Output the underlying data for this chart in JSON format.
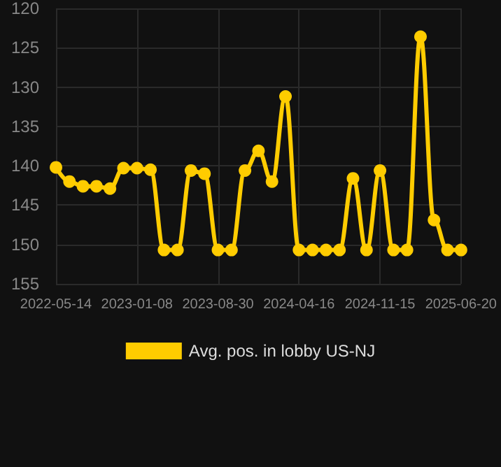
{
  "chart_data": {
    "type": "line",
    "categories": [
      "2022-05-14",
      null,
      null,
      null,
      null,
      null,
      "2023-01-08",
      null,
      null,
      null,
      null,
      null,
      "2023-08-30",
      null,
      null,
      null,
      null,
      null,
      "2024-04-16",
      null,
      null,
      null,
      null,
      null,
      "2024-11-15",
      null,
      null,
      null,
      null,
      null,
      "2025-06-20"
    ],
    "series": [
      {
        "name": "Avg. pos. in lobby US-NJ",
        "color": "#ffcc00",
        "values": [
          140.2,
          142.0,
          142.6,
          142.6,
          142.9,
          140.3,
          140.3,
          140.5,
          150.7,
          150.7,
          140.6,
          141.0,
          150.7,
          150.7,
          140.6,
          138.1,
          142.0,
          131.2,
          150.7,
          150.7,
          150.7,
          150.7,
          141.6,
          150.7,
          140.6,
          150.7,
          150.7,
          123.6,
          146.9,
          150.7,
          150.7
        ]
      }
    ],
    "ylim": [
      155,
      120
    ],
    "yticks": [
      120,
      125,
      130,
      135,
      140,
      145,
      150,
      155
    ],
    "grid": true,
    "legend": "bottom",
    "marker": "circle",
    "line_style": "solid"
  }
}
